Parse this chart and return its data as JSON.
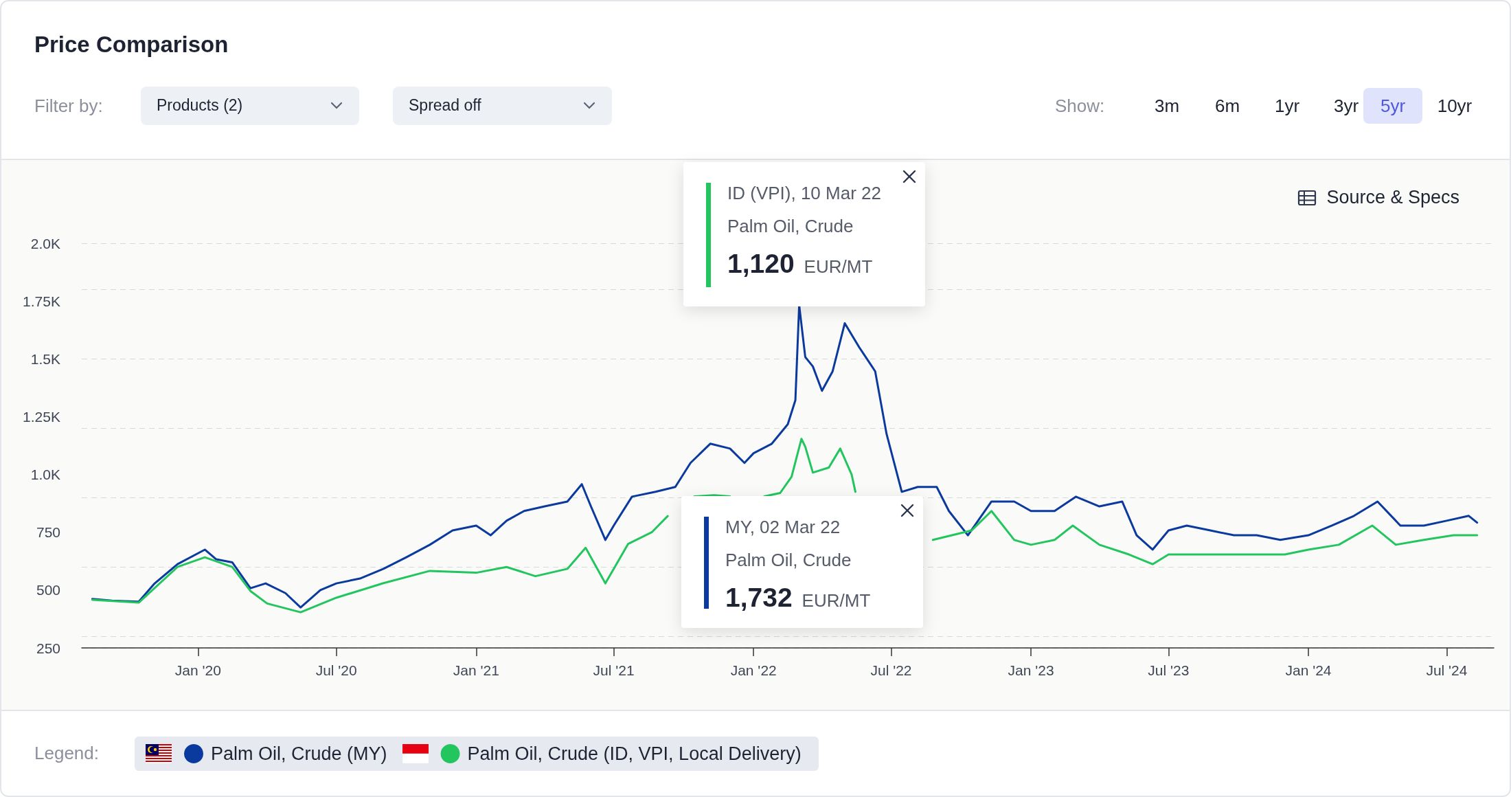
{
  "chart_data": {
    "type": "line",
    "title": "Price Comparison",
    "annotations": [
      "Filter by:",
      "Products (2)",
      "Spread off",
      "Show:",
      "3m",
      "6m",
      "1yr",
      "3yr",
      "5yr",
      "10yr",
      "Source & Specs",
      "Legend:",
      "ID (VPI), 10 Mar 22\nPalm Oil, Crude\n1,120 EUR/MT",
      "MY, 02 Mar 22\nPalm Oil, Crude\n1,732 EUR/MT"
    ],
    "series": [
      {
        "name": "Palm Oil, Crude (MY)",
        "color": "#0b3a9e",
        "x": [
          "2019-08-15",
          "2019-09-10",
          "2019-10-15",
          "2019-11-05",
          "2019-12-05",
          "2020-01-10",
          "2020-01-25",
          "2020-02-15",
          "2020-03-10",
          "2020-03-30",
          "2020-04-25",
          "2020-05-15",
          "2020-06-10",
          "2020-07-01",
          "2020-08-01",
          "2020-09-01",
          "2020-10-01",
          "2020-11-01",
          "2020-12-01",
          "2021-01-01",
          "2021-01-20",
          "2021-02-10",
          "2021-03-05",
          "2021-04-01",
          "2021-05-01",
          "2021-05-20",
          "2021-06-01",
          "2021-06-20",
          "2021-07-01",
          "2021-07-25",
          "2021-08-25",
          "2021-09-20",
          "2021-10-10",
          "2021-11-05",
          "2021-12-01",
          "2021-12-20",
          "2022-01-01",
          "2022-01-25",
          "2022-02-15",
          "2022-02-25",
          "2022-03-02",
          "2022-03-10",
          "2022-03-20",
          "2022-04-01",
          "2022-04-15",
          "2022-05-01",
          "2022-05-20",
          "2022-06-10",
          "2022-06-25",
          "2022-07-15",
          "2022-08-05",
          "2022-08-30",
          "2022-09-15",
          "2022-10-10",
          "2022-11-10",
          "2022-12-10",
          "2023-01-01",
          "2023-02-01",
          "2023-03-01",
          "2023-04-01",
          "2023-05-01",
          "2023-05-20",
          "2023-06-10",
          "2023-07-01",
          "2023-07-25",
          "2023-08-25",
          "2023-09-25",
          "2023-10-25",
          "2023-11-25",
          "2024-01-01",
          "2024-02-01",
          "2024-03-01",
          "2024-04-01",
          "2024-05-01",
          "2024-06-01",
          "2024-07-01",
          "2024-07-30",
          "2024-08-10"
        ],
        "values": [
          462,
          454,
          450,
          529,
          612,
          675,
          633,
          620,
          508,
          529,
          487,
          425,
          500,
          529,
          550,
          592,
          642,
          696,
          758,
          779,
          737,
          800,
          842,
          862,
          883,
          958,
          862,
          717,
          779,
          904,
          925,
          946,
          1050,
          1133,
          1112,
          1050,
          1092,
          1133,
          1217,
          1321,
          1732,
          1508,
          1467,
          1362,
          1446,
          1654,
          1550,
          1446,
          1175,
          925,
          946,
          946,
          842,
          737,
          883,
          883,
          842,
          842,
          904,
          862,
          883,
          737,
          675,
          758,
          779,
          758,
          737,
          737,
          717,
          737,
          779,
          821,
          883,
          779,
          779,
          800,
          821,
          792
        ]
      },
      {
        "name": "Palm Oil, Crude (ID, VPI, Local Delivery)",
        "color": "#22c55e",
        "x": [
          "2019-08-15",
          "2019-10-15",
          "2019-12-05",
          "2020-01-10",
          "2020-02-15",
          "2020-03-10",
          "2020-04-01",
          "2020-05-15",
          "2020-07-01",
          "2020-09-01",
          "2020-11-01",
          "2021-01-01",
          "2021-02-10",
          "2021-03-20",
          "2021-05-01",
          "2021-05-25",
          "2021-06-20",
          "2021-07-20",
          "2021-08-20",
          "2021-09-10",
          "2021-09-25",
          "2021-10-15",
          "2021-11-10",
          "2021-12-01",
          "2021-12-20",
          "2022-01-15",
          "2022-02-05",
          "2022-02-20",
          "2022-03-05",
          "2022-03-10",
          "2022-03-20",
          "2022-04-10",
          "2022-04-25",
          "2022-05-10",
          "2022-05-15",
          "2022-06-01",
          "2022-08-25",
          "2022-10-15",
          "2022-11-10",
          "2022-12-10",
          "2023-01-01",
          "2023-02-01",
          "2023-02-25",
          "2023-04-01",
          "2023-05-10",
          "2023-06-10",
          "2023-07-01",
          "2023-09-01",
          "2023-10-20",
          "2023-12-01",
          "2024-01-01",
          "2024-02-10",
          "2024-03-25",
          "2024-04-25",
          "2024-06-01",
          "2024-07-10",
          "2024-08-10"
        ],
        "values": [
          458,
          446,
          600,
          642,
          600,
          496,
          442,
          404,
          467,
          530,
          583,
          575,
          600,
          560,
          592,
          683,
          529,
          700,
          750,
          820,
          null,
          905,
          910,
          905,
          null,
          905,
          920,
          990,
          1154,
          1120,
          1008,
          1030,
          1112,
          1000,
          925,
          null,
          717,
          758,
          842,
          717,
          696,
          717,
          779,
          696,
          654,
          612,
          654,
          654,
          654,
          654,
          675,
          696,
          779,
          696,
          717,
          737,
          737
        ]
      }
    ],
    "xlim": [
      "2019-08-01",
      "2024-09-01"
    ],
    "xticks": [
      {
        "value": "2020-01",
        "label": "Jan '20"
      },
      {
        "value": "2020-07",
        "label": "Jul '20"
      },
      {
        "value": "2021-01",
        "label": "Jan '21"
      },
      {
        "value": "2021-07",
        "label": "Jul '21"
      },
      {
        "value": "2022-01",
        "label": "Jan '22"
      },
      {
        "value": "2022-07",
        "label": "Jul '22"
      },
      {
        "value": "2023-01",
        "label": "Jan '23"
      },
      {
        "value": "2023-07",
        "label": "Jul '23"
      },
      {
        "value": "2024-01",
        "label": "Jan '24"
      },
      {
        "value": "2024-07",
        "label": "Jul '24"
      }
    ],
    "ylim": [
      250,
      2000
    ],
    "yticks": [
      250,
      500,
      750,
      {
        "value": 1000,
        "label": "1.0K"
      },
      {
        "value": 1250,
        "label": "1.25K"
      },
      {
        "value": 1500,
        "label": "1.5K"
      },
      {
        "value": 1750,
        "label": "1.75K"
      },
      {
        "value": 2000,
        "label": "2.0K"
      }
    ],
    "grid": "y",
    "legend": "bottom",
    "marker": "none",
    "line_style": "solid"
  }
}
